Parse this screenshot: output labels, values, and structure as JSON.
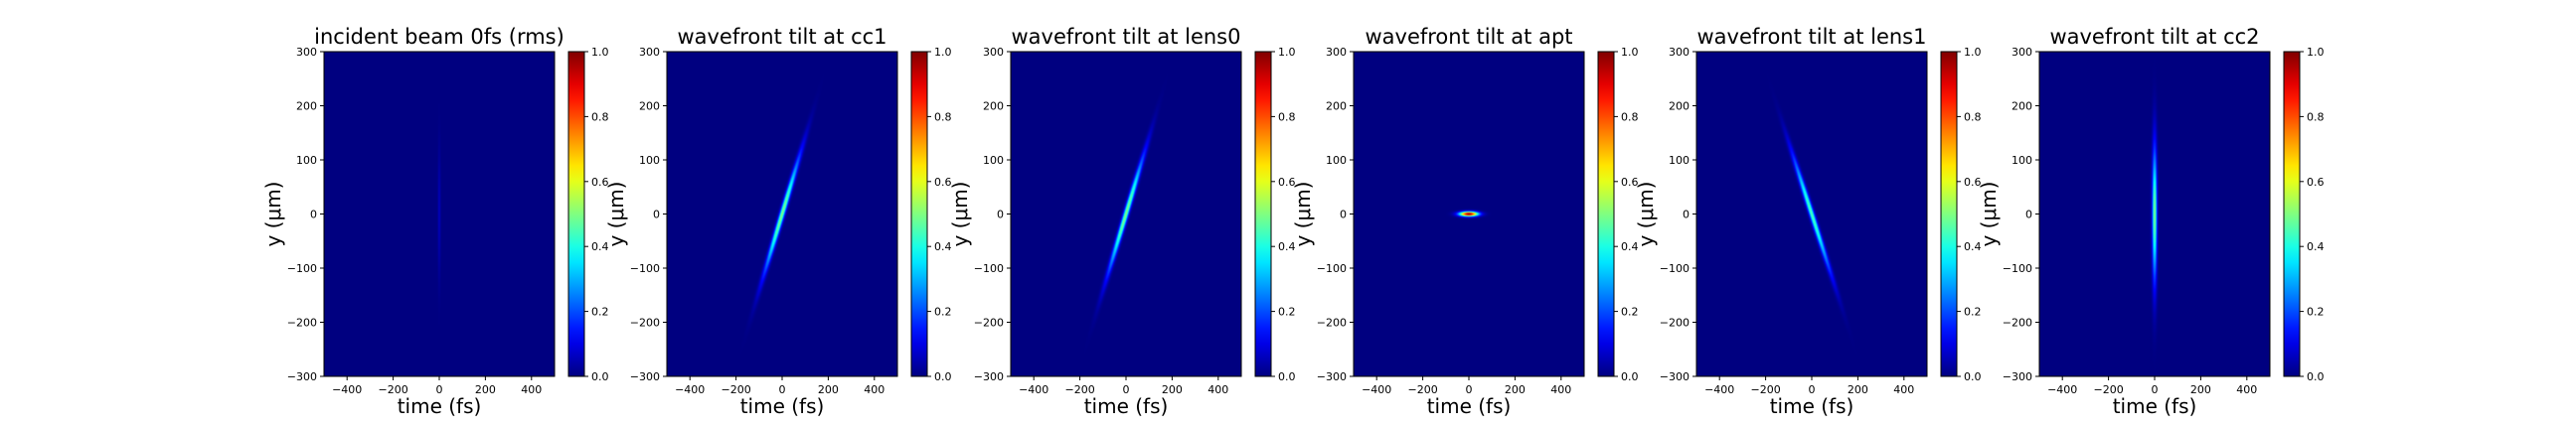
{
  "colormap": "jet",
  "chart_data": [
    {
      "type": "heatmap",
      "title": "incident beam 0fs (rms)",
      "xlabel": "time (fs)",
      "ylabel": "y (μm)",
      "xlim": [
        -500,
        500
      ],
      "ylim": [
        -300,
        300
      ],
      "xticks": [
        -400,
        -200,
        0,
        200,
        400
      ],
      "yticks": [
        -300,
        -200,
        -100,
        0,
        100,
        200,
        300
      ],
      "colorbar": {
        "range": [
          0,
          1
        ],
        "ticks": [
          0.0,
          0.2,
          0.4,
          0.6,
          0.8,
          1.0
        ]
      },
      "pulse": {
        "center_t_fs": 0,
        "center_y_um": 0,
        "tilt_fs_per_um": 0,
        "sigma_t_fs": 4,
        "sigma_y_um": 80,
        "peak": 0.06
      }
    },
    {
      "type": "heatmap",
      "title": "wavefront tilt at cc1",
      "xlabel": "time (fs)",
      "ylabel": "y (μm)",
      "xlim": [
        -500,
        500
      ],
      "ylim": [
        -300,
        300
      ],
      "xticks": [
        -400,
        -200,
        0,
        200,
        400
      ],
      "yticks": [
        -300,
        -200,
        -100,
        0,
        100,
        200,
        300
      ],
      "colorbar": {
        "range": [
          0,
          1
        ],
        "ticks": [
          0.0,
          0.2,
          0.4,
          0.6,
          0.8,
          1.0
        ]
      },
      "pulse": {
        "center_t_fs": 0,
        "center_y_um": 0,
        "tilt_fs_per_um": 0.7,
        "sigma_t_fs": 8,
        "sigma_y_um": 75,
        "peak": 0.5
      }
    },
    {
      "type": "heatmap",
      "title": "wavefront tilt at lens0",
      "xlabel": "time (fs)",
      "ylabel": "y (μm)",
      "xlim": [
        -500,
        500
      ],
      "ylim": [
        -300,
        300
      ],
      "xticks": [
        -400,
        -200,
        0,
        200,
        400
      ],
      "yticks": [
        -300,
        -200,
        -100,
        0,
        100,
        200,
        300
      ],
      "colorbar": {
        "range": [
          0,
          1
        ],
        "ticks": [
          0.0,
          0.2,
          0.4,
          0.6,
          0.8,
          1.0
        ]
      },
      "pulse": {
        "center_t_fs": 0,
        "center_y_um": 0,
        "tilt_fs_per_um": 0.7,
        "sigma_t_fs": 8,
        "sigma_y_um": 75,
        "peak": 0.5
      }
    },
    {
      "type": "heatmap",
      "title": "wavefront tilt at apt",
      "xlabel": "time (fs)",
      "ylabel": "y (μm)",
      "xlim": [
        -500,
        500
      ],
      "ylim": [
        -300,
        300
      ],
      "xticks": [
        -400,
        -200,
        0,
        200,
        400
      ],
      "yticks": [
        -300,
        -200,
        -100,
        0,
        100,
        200,
        300
      ],
      "colorbar": {
        "range": [
          0,
          1
        ],
        "ticks": [
          0.0,
          0.2,
          0.4,
          0.6,
          0.8,
          1.0
        ]
      },
      "pulse": {
        "center_t_fs": 0,
        "center_y_um": 0,
        "tilt_fs_per_um": 0,
        "sigma_t_fs": 28,
        "sigma_y_um": 3,
        "peak": 1.0
      }
    },
    {
      "type": "heatmap",
      "title": "wavefront tilt at lens1",
      "xlabel": "time (fs)",
      "ylabel": "y (μm)",
      "xlim": [
        -500,
        500
      ],
      "ylim": [
        -300,
        300
      ],
      "xticks": [
        -400,
        -200,
        0,
        200,
        400
      ],
      "yticks": [
        -300,
        -200,
        -100,
        0,
        100,
        200,
        300
      ],
      "colorbar": {
        "range": [
          0,
          1
        ],
        "ticks": [
          0.0,
          0.2,
          0.4,
          0.6,
          0.8,
          1.0
        ]
      },
      "pulse": {
        "center_t_fs": 0,
        "center_y_um": 0,
        "tilt_fs_per_um": -0.75,
        "sigma_t_fs": 8,
        "sigma_y_um": 75,
        "peak": 0.45
      }
    },
    {
      "type": "heatmap",
      "title": "wavefront tilt at cc2",
      "xlabel": "time (fs)",
      "ylabel": "y (μm)",
      "xlim": [
        -500,
        500
      ],
      "ylim": [
        -300,
        300
      ],
      "xticks": [
        -400,
        -200,
        0,
        200,
        400
      ],
      "yticks": [
        -300,
        -200,
        -100,
        0,
        100,
        200,
        300
      ],
      "colorbar": {
        "range": [
          0,
          1
        ],
        "ticks": [
          0.0,
          0.2,
          0.4,
          0.6,
          0.8,
          1.0
        ]
      },
      "pulse": {
        "center_t_fs": 0,
        "center_y_um": 0,
        "tilt_fs_per_um": 0,
        "sigma_t_fs": 7,
        "sigma_y_um": 85,
        "peak": 0.5
      }
    }
  ]
}
